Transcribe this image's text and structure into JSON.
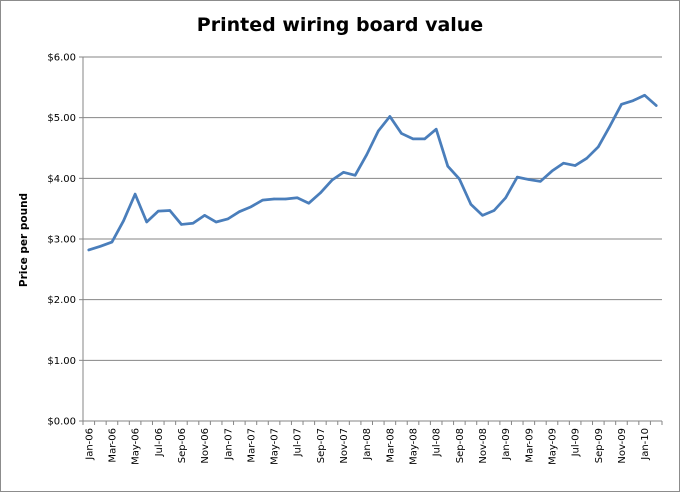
{
  "chart_data": {
    "type": "line",
    "title": "Printed wiring board value",
    "ylabel": "Price per pound",
    "xlabel": "",
    "ylim": [
      0,
      6
    ],
    "y_ticks": [
      "$0.00",
      "$1.00",
      "$2.00",
      "$3.00",
      "$4.00",
      "$5.00",
      "$6.00"
    ],
    "x_tick_labels": [
      "Jan-06",
      "Mar-06",
      "May-06",
      "Jul-06",
      "Sep-06",
      "Nov-06",
      "Jan-07",
      "Mar-07",
      "May-07",
      "Jul-07",
      "Sep-07",
      "Nov-07",
      "Jan-08",
      "Mar-08",
      "May-08",
      "Jul-08",
      "Sep-08",
      "Nov-08",
      "Jan-09",
      "Mar-09",
      "May-09",
      "Jul-09",
      "Sep-09",
      "Nov-09",
      "Jan-10"
    ],
    "gridlines": true,
    "legend": "none",
    "line_color": "#4a7ebb",
    "series": [
      {
        "x": [
          "Jan-06",
          "Feb-06",
          "Mar-06",
          "Apr-06",
          "May-06",
          "Jun-06",
          "Jul-06",
          "Aug-06",
          "Sep-06",
          "Oct-06",
          "Nov-06",
          "Dec-06",
          "Jan-07",
          "Feb-07",
          "Mar-07",
          "Apr-07",
          "May-07",
          "Jun-07",
          "Jul-07",
          "Aug-07",
          "Sep-07",
          "Oct-07",
          "Nov-07",
          "Dec-07",
          "Jan-08",
          "Feb-08",
          "Mar-08",
          "Apr-08",
          "May-08",
          "Jun-08",
          "Jul-08",
          "Aug-08",
          "Sep-08",
          "Oct-08",
          "Nov-08",
          "Dec-08",
          "Jan-09",
          "Feb-09",
          "Mar-09",
          "Apr-09",
          "May-09",
          "Jun-09",
          "Jul-09",
          "Aug-09",
          "Sep-09",
          "Oct-09",
          "Nov-09",
          "Dec-09",
          "Jan-10",
          "Feb-10"
        ],
        "values": [
          2.82,
          2.88,
          2.95,
          3.3,
          3.74,
          3.28,
          3.46,
          3.47,
          3.24,
          3.26,
          3.39,
          3.28,
          3.33,
          3.45,
          3.53,
          3.64,
          3.66,
          3.66,
          3.68,
          3.59,
          3.76,
          3.97,
          4.1,
          4.05,
          4.39,
          4.78,
          5.02,
          4.74,
          4.65,
          4.65,
          4.81,
          4.2,
          3.99,
          3.57,
          3.39,
          3.47,
          3.68,
          4.02,
          3.98,
          3.95,
          4.12,
          4.25,
          4.21,
          4.33,
          4.52,
          4.86,
          5.22,
          5.28,
          5.37,
          5.2
        ]
      }
    ]
  }
}
